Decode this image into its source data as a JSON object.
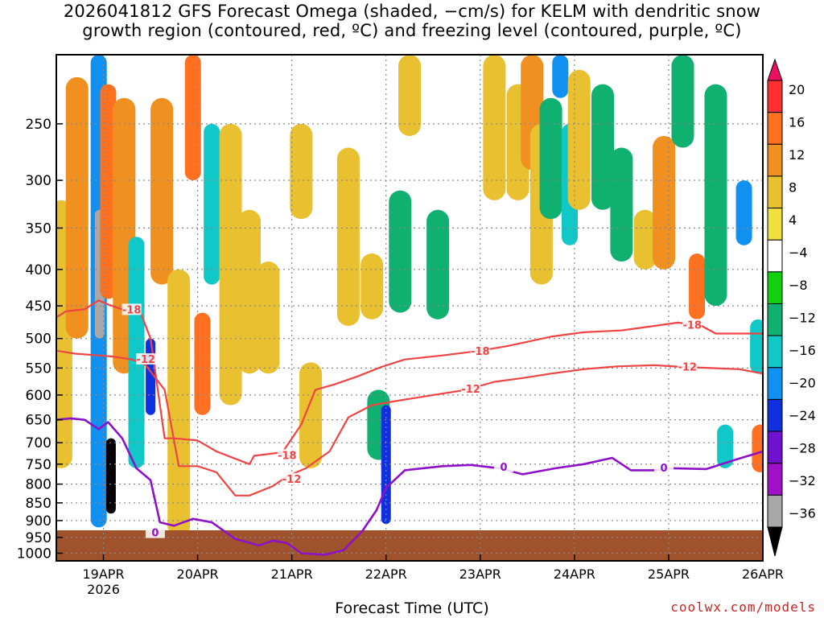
{
  "title_line1": "2026041812 GFS Forecast Omega (shaded, −cm/s) for KELM with dendritic snow",
  "title_line2": "growth region (contoured, red, ºC) and freezing level (contoured, purple, ºC)",
  "credit": "coolwx.com/models",
  "colors": {
    "frame": "#000000",
    "grid": "#888888",
    "ground": "#a0522d",
    "dgz_contour": "#ee4444",
    "freezing_contour": "#8e10c8"
  },
  "chart_data": {
    "type": "heatmap",
    "title": "2026041812 GFS Forecast Omega (shaded, −cm/s) for KELM with dendritic snow growth region (contoured, red, ºC) and freezing level (contoured, purple, ºC)",
    "xlabel": "Forecast Time (UTC)",
    "ylabel": "",
    "x_ticks": [
      "19APR",
      "20APR",
      "21APR",
      "22APR",
      "23APR",
      "24APR",
      "25APR",
      "26APR"
    ],
    "x_tick_days": [
      1,
      2,
      3,
      4,
      5,
      6,
      7,
      8
    ],
    "x_sub_label": "2026",
    "xlim_days": [
      0.5,
      8.0
    ],
    "y_ticks": [
      250,
      300,
      350,
      400,
      450,
      500,
      550,
      600,
      650,
      700,
      750,
      800,
      850,
      900,
      950,
      1000
    ],
    "ylim_hpa": [
      200,
      1025
    ],
    "y_scale": "log-pressure (inverted)",
    "grid": true,
    "colorbar": {
      "labels": [
        "20",
        "16",
        "12",
        "8",
        "4",
        "−4",
        "−8",
        "−12",
        "−16",
        "−20",
        "−24",
        "−28",
        "−32",
        "−36"
      ],
      "colors": [
        "#ee1060",
        "#ff3030",
        "#ff7020",
        "#f09020",
        "#e8c030",
        "#f0e040",
        "#ffffff",
        "#10d010",
        "#10b070",
        "#10c8c8",
        "#1090f0",
        "#1030e0",
        "#7010d0",
        "#a010c8",
        "#a8a8a8",
        "#000000"
      ]
    },
    "omega_blobs": [
      {
        "day": 0.55,
        "p_top": 320,
        "p_bot": 760,
        "value": 4
      },
      {
        "day": 0.72,
        "p_top": 215,
        "p_bot": 500,
        "value": 8
      },
      {
        "day": 0.95,
        "p_top": 200,
        "p_bot": 920,
        "value": -16
      },
      {
        "day": 0.96,
        "p_top": 330,
        "p_bot": 500,
        "value": -32
      },
      {
        "day": 1.05,
        "p_top": 220,
        "p_bot": 440,
        "value": 12
      },
      {
        "day": 1.08,
        "p_top": 690,
        "p_bot": 880,
        "value": -36
      },
      {
        "day": 1.22,
        "p_top": 230,
        "p_bot": 560,
        "value": 8
      },
      {
        "day": 1.35,
        "p_top": 360,
        "p_bot": 760,
        "value": -12
      },
      {
        "day": 1.5,
        "p_top": 500,
        "p_bot": 640,
        "value": -20
      },
      {
        "day": 1.62,
        "p_top": 230,
        "p_bot": 420,
        "value": 8
      },
      {
        "day": 1.8,
        "p_top": 400,
        "p_bot": 950,
        "value": 4
      },
      {
        "day": 1.95,
        "p_top": 200,
        "p_bot": 300,
        "value": 12
      },
      {
        "day": 2.05,
        "p_top": 460,
        "p_bot": 640,
        "value": 12
      },
      {
        "day": 2.15,
        "p_top": 250,
        "p_bot": 420,
        "value": -12
      },
      {
        "day": 2.35,
        "p_top": 250,
        "p_bot": 620,
        "value": 4
      },
      {
        "day": 2.55,
        "p_top": 330,
        "p_bot": 560,
        "value": 4
      },
      {
        "day": 2.75,
        "p_top": 390,
        "p_bot": 560,
        "value": 4
      },
      {
        "day": 3.1,
        "p_top": 250,
        "p_bot": 340,
        "value": 4
      },
      {
        "day": 3.2,
        "p_top": 540,
        "p_bot": 760,
        "value": 4
      },
      {
        "day": 3.6,
        "p_top": 270,
        "p_bot": 480,
        "value": 4
      },
      {
        "day": 3.85,
        "p_top": 380,
        "p_bot": 470,
        "value": 4
      },
      {
        "day": 3.92,
        "p_top": 590,
        "p_bot": 740,
        "value": -8
      },
      {
        "day": 4.0,
        "p_top": 620,
        "p_bot": 910,
        "value": -20
      },
      {
        "day": 4.15,
        "p_top": 310,
        "p_bot": 460,
        "value": -8
      },
      {
        "day": 4.25,
        "p_top": 200,
        "p_bot": 260,
        "value": 4
      },
      {
        "day": 4.55,
        "p_top": 330,
        "p_bot": 470,
        "value": -8
      },
      {
        "day": 5.15,
        "p_top": 200,
        "p_bot": 320,
        "value": 4
      },
      {
        "day": 5.4,
        "p_top": 220,
        "p_bot": 320,
        "value": 4
      },
      {
        "day": 5.55,
        "p_top": 200,
        "p_bot": 290,
        "value": 8
      },
      {
        "day": 5.65,
        "p_top": 250,
        "p_bot": 420,
        "value": 4
      },
      {
        "day": 5.75,
        "p_top": 230,
        "p_bot": 340,
        "value": -8
      },
      {
        "day": 5.85,
        "p_top": 200,
        "p_bot": 230,
        "value": -16
      },
      {
        "day": 5.95,
        "p_top": 250,
        "p_bot": 370,
        "value": -12
      },
      {
        "day": 6.05,
        "p_top": 210,
        "p_bot": 330,
        "value": 4
      },
      {
        "day": 6.3,
        "p_top": 220,
        "p_bot": 330,
        "value": -8
      },
      {
        "day": 6.5,
        "p_top": 270,
        "p_bot": 390,
        "value": -8
      },
      {
        "day": 6.75,
        "p_top": 330,
        "p_bot": 400,
        "value": 4
      },
      {
        "day": 6.95,
        "p_top": 260,
        "p_bot": 400,
        "value": 8
      },
      {
        "day": 7.15,
        "p_top": 200,
        "p_bot": 270,
        "value": -8
      },
      {
        "day": 7.3,
        "p_top": 380,
        "p_bot": 470,
        "value": 12
      },
      {
        "day": 7.5,
        "p_top": 220,
        "p_bot": 450,
        "value": -8
      },
      {
        "day": 7.6,
        "p_top": 660,
        "p_bot": 760,
        "value": -12
      },
      {
        "day": 7.8,
        "p_top": 300,
        "p_bot": 370,
        "value": -16
      },
      {
        "day": 7.95,
        "p_top": 470,
        "p_bot": 560,
        "value": -12
      },
      {
        "day": 7.97,
        "p_top": 660,
        "p_bot": 770,
        "value": 12
      }
    ],
    "series": [
      {
        "name": "-18",
        "days": [
          0.5,
          0.6,
          0.8,
          0.95,
          1.05,
          1.2,
          1.4,
          1.5,
          1.65,
          1.75,
          2.0,
          2.2,
          2.55,
          2.6,
          2.9,
          3.1,
          3.25,
          3.45,
          3.7,
          3.95,
          4.2,
          4.6,
          5.0,
          5.3,
          5.75,
          6.1,
          6.5,
          6.85,
          7.1,
          7.35,
          7.5,
          7.75,
          8.0
        ],
        "p": [
          467,
          458,
          455,
          442,
          448,
          455,
          462,
          500,
          690,
          690,
          695,
          720,
          750,
          730,
          722,
          660,
          590,
          580,
          565,
          548,
          535,
          528,
          520,
          512,
          497,
          490,
          487,
          480,
          475,
          480,
          492,
          492,
          492
        ]
      },
      {
        "name": "-12",
        "days": [
          0.5,
          0.7,
          0.95,
          1.1,
          1.3,
          1.45,
          1.65,
          1.8,
          2.0,
          2.2,
          2.4,
          2.55,
          2.8,
          2.95,
          3.15,
          3.4,
          3.6,
          3.85,
          4.1,
          4.5,
          4.85,
          5.15,
          5.45,
          5.75,
          6.1,
          6.45,
          6.85,
          7.15,
          7.45,
          7.75,
          8.0
        ],
        "p": [
          520,
          525,
          528,
          530,
          535,
          545,
          590,
          755,
          755,
          770,
          830,
          830,
          805,
          780,
          760,
          720,
          645,
          620,
          612,
          600,
          590,
          575,
          568,
          560,
          552,
          547,
          545,
          548,
          550,
          552,
          560
        ]
      },
      {
        "name": "0",
        "days": [
          0.5,
          0.65,
          0.8,
          0.95,
          1.05,
          1.2,
          1.35,
          1.5,
          1.6,
          1.75,
          1.95,
          2.15,
          2.4,
          2.65,
          2.8,
          2.95,
          3.1,
          3.35,
          3.55,
          3.75,
          3.9,
          4.0,
          4.2,
          4.6,
          4.9,
          5.2,
          5.45,
          5.8,
          6.1,
          6.4,
          6.6,
          6.85,
          7.05,
          7.4,
          7.7,
          8.0
        ],
        "p": [
          650,
          647,
          650,
          670,
          655,
          690,
          760,
          790,
          905,
          915,
          895,
          905,
          955,
          975,
          960,
          968,
          1000,
          1005,
          990,
          930,
          870,
          810,
          765,
          755,
          752,
          760,
          775,
          760,
          750,
          735,
          765,
          765,
          760,
          762,
          740,
          720
        ]
      }
    ],
    "contour_labels": [
      {
        "text": "-18",
        "series": "-18",
        "day": 1.3,
        "p": 455
      },
      {
        "text": "-12",
        "series": "-12",
        "day": 1.45,
        "p": 534
      },
      {
        "text": "0",
        "series": "0",
        "day": 1.55,
        "p": 935
      },
      {
        "text": "-18",
        "series": "-18",
        "day": 2.95,
        "p": 728
      },
      {
        "text": "-12",
        "series": "-12",
        "day": 3.0,
        "p": 786
      },
      {
        "text": "-18",
        "series": "-18",
        "day": 5.0,
        "p": 520
      },
      {
        "text": "-12",
        "series": "-12",
        "day": 4.9,
        "p": 588
      },
      {
        "text": "0",
        "series": "0",
        "day": 5.25,
        "p": 756
      },
      {
        "text": "-18",
        "series": "-18",
        "day": 7.25,
        "p": 478
      },
      {
        "text": "-12",
        "series": "-12",
        "day": 7.2,
        "p": 547
      },
      {
        "text": "0",
        "series": "0",
        "day": 6.95,
        "p": 758
      }
    ]
  }
}
